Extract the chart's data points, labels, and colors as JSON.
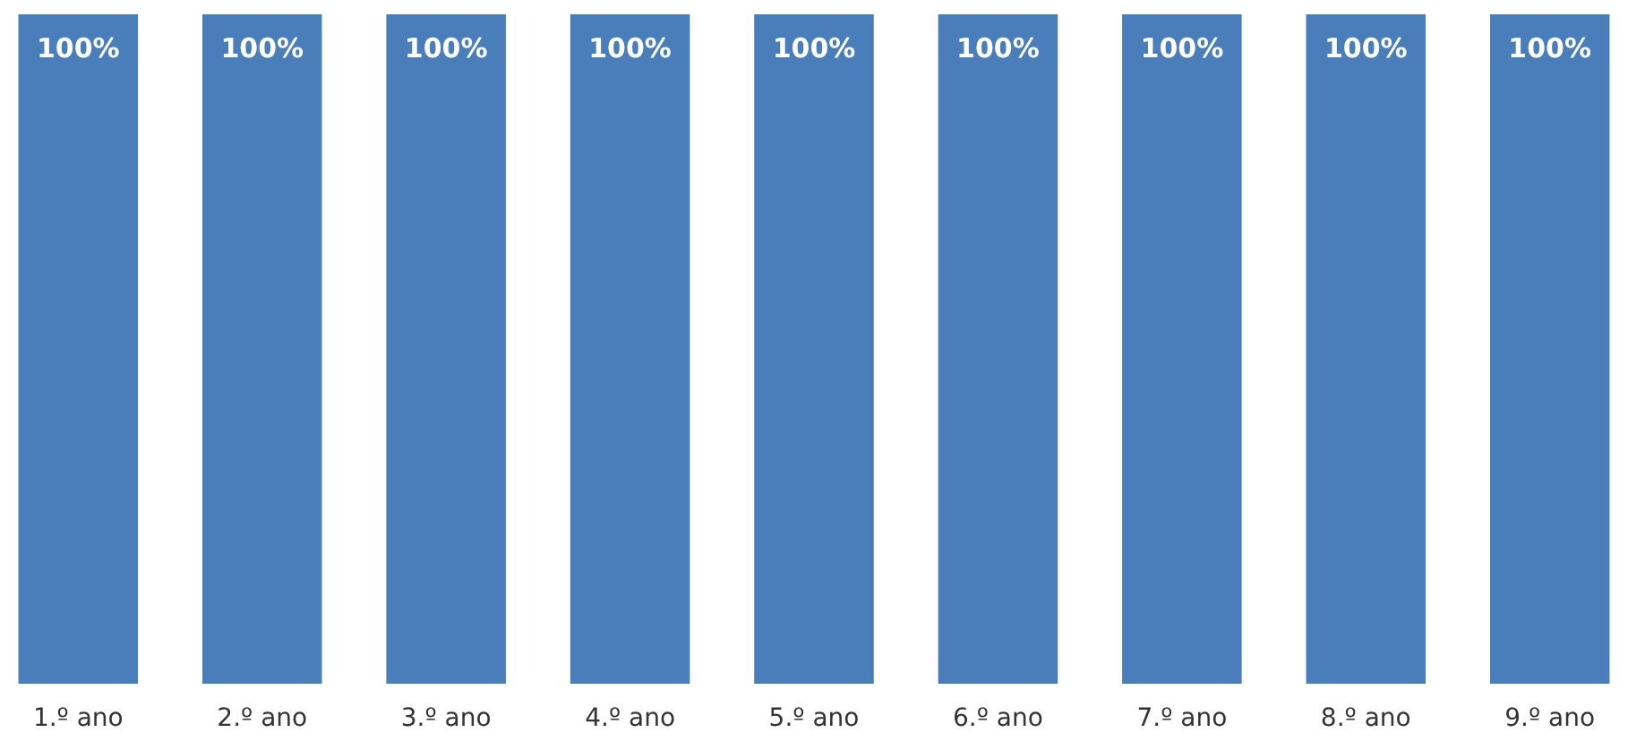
{
  "chart_data": {
    "type": "bar",
    "categories": [
      "1.º ano",
      "2.º ano",
      "3.º ano",
      "4.º ano",
      "5.º ano",
      "6.º ano",
      "7.º ano",
      "8.º ano",
      "9.º ano"
    ],
    "values": [
      100,
      100,
      100,
      100,
      100,
      100,
      100,
      100,
      100
    ],
    "value_labels": [
      "100%",
      "100%",
      "100%",
      "100%",
      "100%",
      "100%",
      "100%",
      "100%",
      "100%"
    ],
    "color": "#4a7ebb"
  }
}
